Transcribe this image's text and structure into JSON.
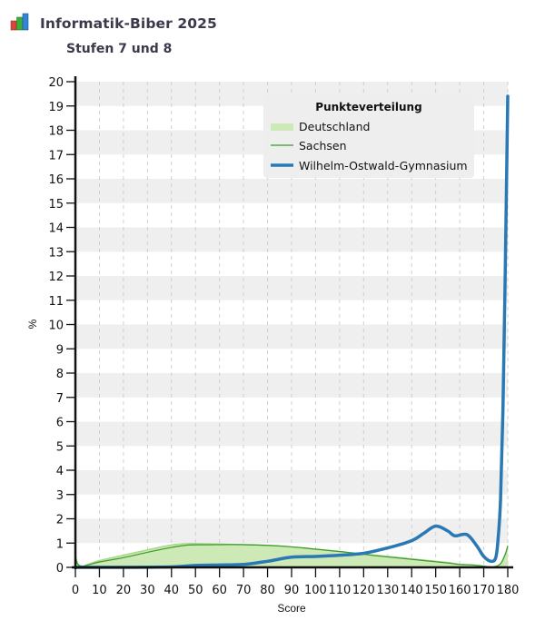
{
  "header": {
    "title": "Informatik-Biber 2025",
    "subtitle": "Stufen 7 und 8",
    "logo_icon": "bar-chart-icon"
  },
  "colors": {
    "deutschland_fill": "#cde9b5",
    "deutschland_edge": "#a9d88a",
    "sachsen_line": "#3a9a2e",
    "gymnasium_line": "#2a78b4",
    "band": "#efefef",
    "grid_dash": "#cfcfcf",
    "legend_bg": "#eeeeee"
  },
  "chart_data": {
    "type": "area",
    "title": "Punkteverteilung",
    "xlabel": "Score",
    "ylabel": "%",
    "xlim": [
      0,
      180
    ],
    "ylim": [
      0,
      20
    ],
    "x_ticks": [
      "0",
      "10",
      "20",
      "30",
      "40",
      "50",
      "60",
      "70",
      "80",
      "90",
      "100",
      "110",
      "120",
      "130",
      "140",
      "150",
      "160",
      "170",
      "180"
    ],
    "y_ticks": [
      "0",
      "1",
      "2",
      "3",
      "4",
      "5",
      "6",
      "7",
      "8",
      "9",
      "10",
      "11",
      "12",
      "13",
      "14",
      "15",
      "16",
      "17",
      "18",
      "19",
      "20"
    ],
    "grid": "alternating horizontal bands + dashed vertical gridlines",
    "legend_position": "top-right inside plot",
    "series": [
      {
        "name": "Deutschland",
        "style": "filled area",
        "x": [
          0,
          1,
          3,
          6,
          10,
          20,
          30,
          40,
          47,
          55,
          65,
          75,
          85,
          95,
          105,
          115,
          125,
          135,
          145,
          155,
          160,
          165,
          170,
          174,
          177,
          179,
          180
        ],
        "values": [
          0.5,
          0.15,
          0.05,
          0.15,
          0.28,
          0.5,
          0.72,
          0.92,
          0.98,
          0.97,
          0.95,
          0.93,
          0.88,
          0.8,
          0.7,
          0.6,
          0.5,
          0.4,
          0.3,
          0.2,
          0.12,
          0.1,
          0.05,
          0.02,
          0.15,
          0.55,
          0.9
        ]
      },
      {
        "name": "Sachsen",
        "style": "thin line",
        "x": [
          0,
          1,
          3,
          6,
          10,
          20,
          30,
          40,
          47,
          55,
          65,
          75,
          85,
          95,
          105,
          115,
          125,
          135,
          145,
          155,
          160,
          165,
          170,
          174,
          177,
          179,
          180
        ],
        "values": [
          0.45,
          0.12,
          0.05,
          0.12,
          0.22,
          0.4,
          0.62,
          0.82,
          0.92,
          0.93,
          0.94,
          0.92,
          0.88,
          0.8,
          0.7,
          0.6,
          0.48,
          0.38,
          0.28,
          0.18,
          0.12,
          0.1,
          0.05,
          0.02,
          0.15,
          0.55,
          0.88
        ]
      },
      {
        "name": "Wilhelm-Ostwald-Gymnasium",
        "style": "thick line",
        "x": [
          0,
          20,
          40,
          50,
          60,
          70,
          80,
          90,
          100,
          110,
          120,
          130,
          140,
          145,
          150,
          155,
          158,
          163,
          167,
          170,
          173,
          175,
          176,
          177,
          178,
          179,
          180
        ],
        "values": [
          0.0,
          0.0,
          0.02,
          0.08,
          0.1,
          0.12,
          0.25,
          0.42,
          0.45,
          0.5,
          0.58,
          0.8,
          1.1,
          1.4,
          1.7,
          1.5,
          1.3,
          1.35,
          0.9,
          0.45,
          0.25,
          0.4,
          1.2,
          2.8,
          6.5,
          12.5,
          19.4
        ]
      }
    ]
  }
}
